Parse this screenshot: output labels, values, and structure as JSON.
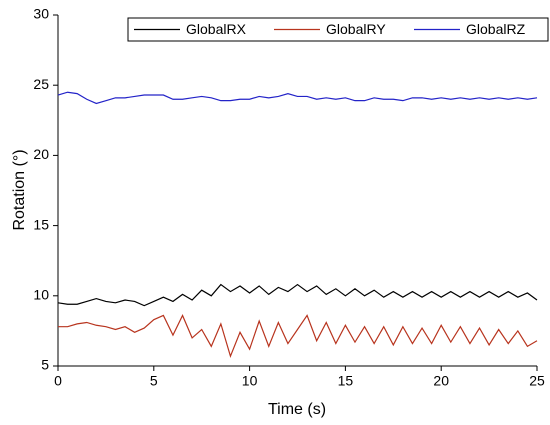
{
  "chart_data": {
    "type": "line",
    "xlabel": "Time (s)",
    "ylabel": "Rotation (°)",
    "x": [
      0,
      0.5,
      1,
      1.5,
      2,
      2.5,
      3,
      3.5,
      4,
      4.5,
      5,
      5.5,
      6,
      6.5,
      7,
      7.5,
      8,
      8.5,
      9,
      9.5,
      10,
      10.5,
      11,
      11.5,
      12,
      12.5,
      13,
      13.5,
      14,
      14.5,
      15,
      15.5,
      16,
      16.5,
      17,
      17.5,
      18,
      18.5,
      19,
      19.5,
      20,
      20.5,
      21,
      21.5,
      22,
      22.5,
      23,
      23.5,
      24,
      24.5,
      25
    ],
    "series": [
      {
        "name": "GlobalRX",
        "color": "#000000",
        "values": [
          9.5,
          9.4,
          9.4,
          9.6,
          9.8,
          9.6,
          9.5,
          9.7,
          9.6,
          9.3,
          9.6,
          9.9,
          9.6,
          10.1,
          9.7,
          10.4,
          10.0,
          10.8,
          10.3,
          10.7,
          10.2,
          10.7,
          10.1,
          10.6,
          10.3,
          10.8,
          10.3,
          10.7,
          10.1,
          10.5,
          10.0,
          10.5,
          10.0,
          10.4,
          9.9,
          10.3,
          9.9,
          10.3,
          9.9,
          10.3,
          9.9,
          10.3,
          9.9,
          10.3,
          9.9,
          10.3,
          9.9,
          10.3,
          9.9,
          10.2,
          9.7
        ]
      },
      {
        "name": "GlobalRY",
        "color": "#b8341e",
        "values": [
          7.8,
          7.8,
          8.0,
          8.1,
          7.9,
          7.8,
          7.6,
          7.8,
          7.4,
          7.7,
          8.3,
          8.6,
          7.2,
          8.6,
          7.0,
          7.6,
          6.4,
          8.0,
          5.7,
          7.4,
          6.2,
          8.2,
          6.4,
          8.1,
          6.6,
          7.6,
          8.6,
          6.8,
          8.1,
          6.6,
          7.9,
          6.7,
          7.8,
          6.6,
          7.8,
          6.5,
          7.8,
          6.6,
          7.7,
          6.6,
          7.9,
          6.7,
          7.8,
          6.6,
          7.7,
          6.5,
          7.6,
          6.6,
          7.5,
          6.4,
          6.8
        ]
      },
      {
        "name": "GlobalRZ",
        "color": "#2323c8",
        "values": [
          24.3,
          24.5,
          24.4,
          24.0,
          23.7,
          23.9,
          24.1,
          24.1,
          24.2,
          24.3,
          24.3,
          24.3,
          24.0,
          24.0,
          24.1,
          24.2,
          24.1,
          23.9,
          23.9,
          24.0,
          24.0,
          24.2,
          24.1,
          24.2,
          24.4,
          24.2,
          24.2,
          24.0,
          24.1,
          24.0,
          24.1,
          23.9,
          23.9,
          24.1,
          24.0,
          24.0,
          23.9,
          24.1,
          24.1,
          24.0,
          24.1,
          24.0,
          24.1,
          24.0,
          24.1,
          24.0,
          24.1,
          24.0,
          24.1,
          24.0,
          24.1
        ]
      }
    ],
    "xlim": [
      0,
      25
    ],
    "xticks": [
      0,
      5,
      10,
      15,
      20,
      25
    ],
    "ylim": [
      5,
      30
    ],
    "yticks": [
      5,
      10,
      15,
      20,
      25,
      30
    ],
    "grid": false,
    "legend": "upper right"
  }
}
